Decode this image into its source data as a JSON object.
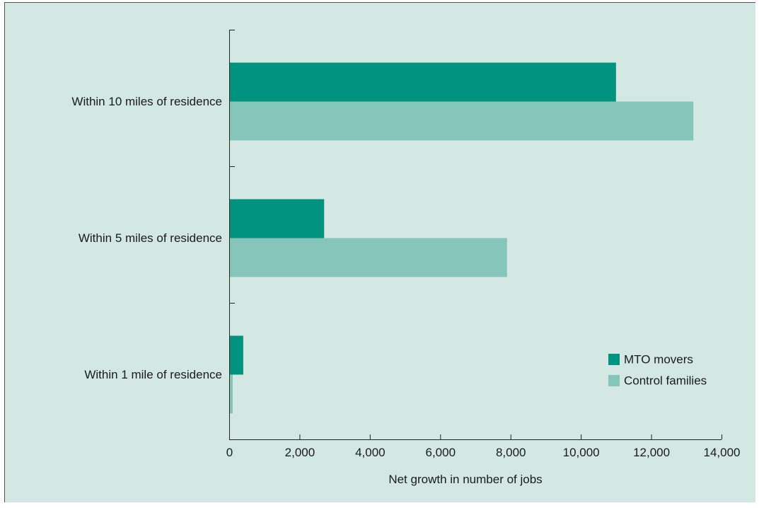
{
  "chart_data": {
    "type": "bar",
    "orientation": "horizontal",
    "categories": [
      "Within 10 miles of residence",
      "Within 5 miles of residence",
      "Within 1 mile of residence"
    ],
    "series": [
      {
        "name": "MTO movers",
        "values": [
          11000,
          2700,
          400
        ],
        "color": "#009480"
      },
      {
        "name": "Control families",
        "values": [
          13200,
          7900,
          100
        ],
        "color": "#86c5ba"
      }
    ],
    "xlabel": "Net growth in number of jobs",
    "ylabel": "",
    "xlim": [
      0,
      14000
    ],
    "xticks": [
      0,
      2000,
      4000,
      6000,
      8000,
      10000,
      12000,
      14000
    ],
    "xtick_labels": [
      "0",
      "2,000",
      "4,000",
      "6,000",
      "8,000",
      "10,000",
      "12,000",
      "14,000"
    ],
    "legend_position": "lower-right",
    "grid": false,
    "background_color": "#d4e8e3"
  }
}
